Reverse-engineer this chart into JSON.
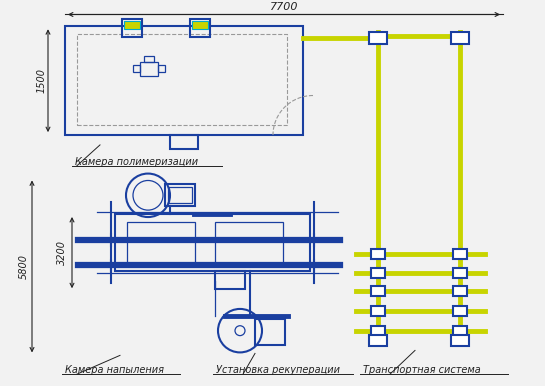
{
  "bg_color": "#f2f2f2",
  "blue": "#1a3fa0",
  "cyan": "#00aacc",
  "green_yellow": "#c8d400",
  "dark": "#222222",
  "gray": "#999999",
  "dim_7700": "7700",
  "dim_1500": "1500",
  "dim_5800": "5800",
  "dim_3200": "3200",
  "label_kamera_pol": "Камера полимеризации",
  "label_kamera_nap": "Камера напыления",
  "label_ustanovka": "Установка рекуперации",
  "label_transport": "Транспортная система"
}
